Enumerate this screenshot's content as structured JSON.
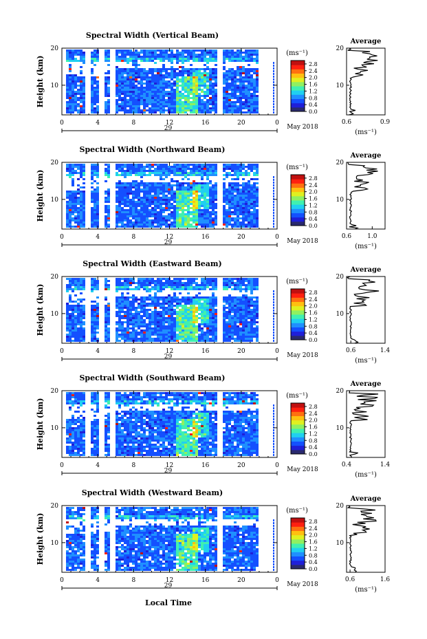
{
  "figure": {
    "xlabel_bottom": "Local Time",
    "date_label": "May 2018",
    "unit_label": "(ms⁻¹)",
    "avg_title": "Average",
    "ylabel": "Height (km)"
  },
  "chart_data": [
    {
      "type": "heatmap",
      "title": "Spectral Width (Vertical Beam)",
      "xlabel": "Local Time",
      "ylabel": "Height (km)",
      "x_ticks": [
        "0",
        "4",
        "8",
        "12",
        "16",
        "20",
        "0"
      ],
      "day_label": "29",
      "y_ticks": [
        "10",
        "20"
      ],
      "colorbar_ticks": [
        "0.0",
        "0.4",
        "0.8",
        "1.2",
        "1.6",
        "2.0",
        "2.4",
        "2.8"
      ],
      "colorbar_range": [
        0,
        3.0
      ],
      "avg_profile": {
        "xlabel": "(ms⁻¹)",
        "x_ticks": [
          "0.6",
          "0.9"
        ],
        "xlim": [
          0.6,
          0.9
        ],
        "ylim": [
          2,
          20
        ]
      }
    },
    {
      "type": "heatmap",
      "title": "Spectral Width (Northward Beam)",
      "xlabel": "Local Time",
      "ylabel": "Height (km)",
      "x_ticks": [
        "0",
        "4",
        "8",
        "12",
        "16",
        "20",
        "0"
      ],
      "day_label": "29",
      "y_ticks": [
        "10",
        "20"
      ],
      "colorbar_ticks": [
        "0.0",
        "0.4",
        "0.8",
        "1.2",
        "1.6",
        "2.0",
        "2.4",
        "2.8"
      ],
      "colorbar_range": [
        0,
        3.0
      ],
      "avg_profile": {
        "xlabel": "(ms⁻¹)",
        "x_ticks": [
          "0.6",
          "1.0"
        ],
        "xlim": [
          0.6,
          1.2
        ],
        "ylim": [
          2,
          20
        ]
      }
    },
    {
      "type": "heatmap",
      "title": "Spectral Width (Eastward Beam)",
      "xlabel": "Local Time",
      "ylabel": "Height (km)",
      "x_ticks": [
        "0",
        "4",
        "8",
        "12",
        "16",
        "20",
        "0"
      ],
      "day_label": "29",
      "y_ticks": [
        "10",
        "20"
      ],
      "colorbar_ticks": [
        "0.0",
        "0.4",
        "0.8",
        "1.2",
        "1.6",
        "2.0",
        "2.4",
        "2.8"
      ],
      "colorbar_range": [
        0,
        3.0
      ],
      "avg_profile": {
        "xlabel": "(ms⁻¹)",
        "x_ticks": [
          "0.6",
          "1.4"
        ],
        "xlim": [
          0.5,
          1.4
        ],
        "ylim": [
          2,
          20
        ]
      }
    },
    {
      "type": "heatmap",
      "title": "Spectral Width (Southward Beam)",
      "xlabel": "Local Time",
      "ylabel": "Height (km)",
      "x_ticks": [
        "0",
        "4",
        "8",
        "12",
        "16",
        "20",
        "0"
      ],
      "day_label": "29",
      "y_ticks": [
        "10",
        "20"
      ],
      "colorbar_ticks": [
        "0.0",
        "0.4",
        "0.8",
        "1.2",
        "1.6",
        "2.0",
        "2.4",
        "2.8"
      ],
      "colorbar_range": [
        0,
        3.0
      ],
      "avg_profile": {
        "xlabel": "(ms⁻¹)",
        "x_ticks": [
          "0.4",
          "1.4"
        ],
        "xlim": [
          0.4,
          1.4
        ],
        "ylim": [
          2,
          20
        ]
      }
    },
    {
      "type": "heatmap",
      "title": "Spectral Width (Westward Beam)",
      "xlabel": "Local Time",
      "ylabel": "Height (km)",
      "x_ticks": [
        "0",
        "4",
        "8",
        "12",
        "16",
        "20",
        "0"
      ],
      "day_label": "29",
      "y_ticks": [
        "10",
        "20"
      ],
      "colorbar_ticks": [
        "0.0",
        "0.4",
        "0.8",
        "1.2",
        "1.6",
        "2.0",
        "2.4",
        "2.8"
      ],
      "colorbar_range": [
        0,
        3.0
      ],
      "avg_profile": {
        "xlabel": "(ms⁻¹)",
        "x_ticks": [
          "0.6",
          "1.6"
        ],
        "xlim": [
          0.5,
          1.6
        ],
        "ylim": [
          2,
          20
        ]
      }
    }
  ],
  "colors": {
    "colormap": [
      "#2a2a6e",
      "#1f1fd8",
      "#1450ff",
      "#1f90ff",
      "#20d0f0",
      "#40f0b0",
      "#90f060",
      "#e0f020",
      "#ffc010",
      "#ff7010",
      "#ff2010",
      "#c01010"
    ],
    "missing": "#ffffff",
    "text": "#000000"
  }
}
